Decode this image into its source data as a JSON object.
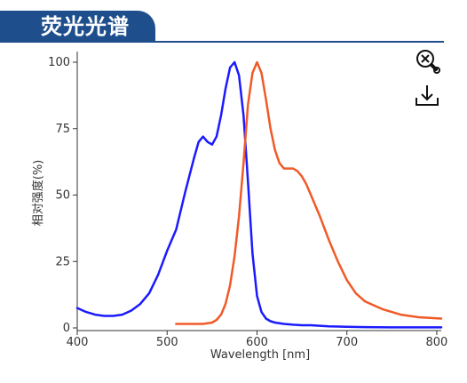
{
  "header": {
    "title": "荧光光谱"
  },
  "toolbar": {
    "zoom_icon": "zoom-reset-icon",
    "download_icon": "download-icon"
  },
  "colors": {
    "header_bg": "#1f4e8c",
    "series_blue": "#1a1aff",
    "series_orange": "#f05a28"
  },
  "chart_data": {
    "type": "line",
    "xlabel": "Wavelength [nm]",
    "ylabel": "相对强度(%)",
    "xlim": [
      400,
      805
    ],
    "ylim": [
      0,
      100
    ],
    "xticks": [
      400,
      500,
      600,
      700,
      800
    ],
    "yticks": [
      0,
      25,
      50,
      75,
      100
    ],
    "grid": false,
    "series": [
      {
        "color": "#1a1aff",
        "x": [
          400,
          410,
          420,
          430,
          440,
          450,
          460,
          470,
          480,
          490,
          500,
          510,
          520,
          530,
          535,
          540,
          545,
          550,
          555,
          560,
          565,
          570,
          575,
          580,
          585,
          590,
          595,
          600,
          605,
          610,
          615,
          620,
          630,
          640,
          650,
          660,
          670,
          680,
          700,
          720,
          750,
          780,
          805
        ],
        "y": [
          7.5,
          6,
          5,
          4.5,
          4.5,
          5,
          6.5,
          9,
          13,
          20,
          29,
          37,
          51,
          64,
          70,
          72,
          70,
          69,
          72,
          80,
          90,
          98,
          100,
          95,
          80,
          55,
          28,
          12,
          6,
          3.5,
          2.5,
          2,
          1.5,
          1.2,
          1,
          1,
          0.8,
          0.6,
          0.4,
          0.3,
          0.2,
          0.2,
          0.2
        ]
      },
      {
        "color": "#f05a28",
        "x": [
          510,
          520,
          530,
          540,
          550,
          555,
          560,
          565,
          570,
          575,
          580,
          585,
          590,
          595,
          600,
          605,
          610,
          615,
          620,
          625,
          630,
          635,
          640,
          645,
          650,
          655,
          660,
          670,
          680,
          690,
          700,
          710,
          720,
          740,
          760,
          780,
          805
        ],
        "y": [
          1.5,
          1.5,
          1.5,
          1.5,
          2,
          3,
          5,
          9,
          16,
          27,
          42,
          62,
          84,
          96,
          100,
          96,
          86,
          75,
          67,
          62,
          60,
          60,
          60,
          59,
          57,
          54,
          50,
          42,
          33,
          25,
          18,
          13,
          10,
          7,
          5,
          4,
          3.5
        ]
      }
    ]
  }
}
